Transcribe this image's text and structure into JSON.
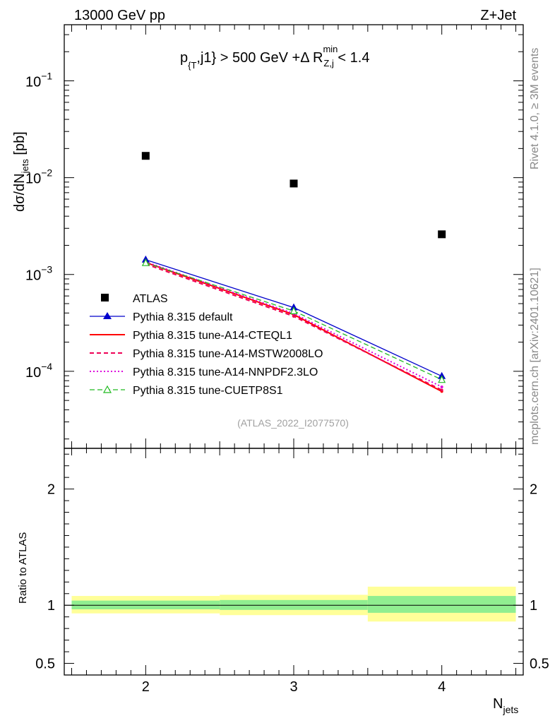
{
  "header": {
    "left": "13000 GeV pp",
    "right": "Z+Jet"
  },
  "side_labels": {
    "rivet": "Rivet 4.1.0, ≥ 3M events",
    "mcplots": "mcplots.cern.ch [arXiv:2401.10621]"
  },
  "chart_data": {
    "type": "line",
    "title": {
      "p": "p",
      "sub1": "{T",
      "mid": ",j1} > 500 GeV +Δ R",
      "sup": "min",
      "sub2": "Z,j",
      "end": " < 1.4"
    },
    "analysis_id": "(ATLAS_2022_I2077570)",
    "ylabel": {
      "main": "dσ/dN",
      "sub": "jets",
      "unit": " [pb]"
    },
    "xlabel": {
      "main": "N",
      "sub": "jets"
    },
    "ratio_ylabel": "Ratio to ATLAS",
    "x": [
      2,
      3,
      4
    ],
    "xlim": [
      1.45,
      4.55
    ],
    "ylim_log": [
      1.6e-05,
      0.38
    ],
    "ratio_ylim": [
      0.4,
      2.35
    ],
    "x_ticks": [
      "2",
      "3",
      "4"
    ],
    "y_ticks": [
      {
        "value": 0.1,
        "base": "10",
        "exp": "−1"
      },
      {
        "value": 0.01,
        "base": "10",
        "exp": "−2"
      },
      {
        "value": 0.001,
        "base": "10",
        "exp": "−3"
      },
      {
        "value": 0.0001,
        "base": "10",
        "exp": "−4"
      }
    ],
    "ratio_ticks": [
      {
        "value": 2,
        "label": "2"
      },
      {
        "value": 1,
        "label": "1"
      },
      {
        "value": 0.5,
        "label": "0.5"
      }
    ],
    "data": {
      "name": "ATLAS",
      "values": [
        0.0168,
        0.0087,
        0.0026
      ]
    },
    "series": [
      {
        "name": "Pythia 8.315 default",
        "values": [
          0.00142,
          0.000455,
          8.9e-05
        ],
        "color": "#0000cc",
        "dash": "",
        "marker": "triangle-filled"
      },
      {
        "name": "Pythia 8.315 tune-A14-CTEQL1",
        "values": [
          0.00133,
          0.000385,
          6.2e-05
        ],
        "color": "#ff0000",
        "dash": "",
        "marker": "none"
      },
      {
        "name": "Pythia 8.315 tune-A14-MSTW2008LO",
        "values": [
          0.00128,
          0.00037,
          6.4e-05
        ],
        "color": "#ee0055",
        "dash": "6,4",
        "marker": "none"
      },
      {
        "name": "Pythia 8.315 tune-A14-NNPDF2.3LO",
        "values": [
          0.00135,
          0.000395,
          6.9e-05
        ],
        "color": "#dd00dd",
        "dash": "2,3",
        "marker": "none"
      },
      {
        "name": "Pythia 8.315 tune-CUETP8S1",
        "values": [
          0.00132,
          0.00042,
          8.2e-05
        ],
        "color": "#22bb22",
        "dash": "7,4",
        "marker": "triangle-open"
      }
    ],
    "ratio_bands": [
      {
        "x_lo": 1.5,
        "x_hi": 2.5,
        "stat_lo": 0.965,
        "stat_hi": 1.04,
        "total_lo": 0.93,
        "total_hi": 1.08
      },
      {
        "x_lo": 2.5,
        "x_hi": 3.5,
        "stat_lo": 0.96,
        "stat_hi": 1.045,
        "total_lo": 0.915,
        "total_hi": 1.09
      },
      {
        "x_lo": 3.5,
        "x_hi": 4.5,
        "stat_lo": 0.935,
        "stat_hi": 1.08,
        "total_lo": 0.86,
        "total_hi": 1.16
      }
    ],
    "colors": {
      "stat_band": "#90ee90",
      "total_band": "#ffff99"
    }
  }
}
